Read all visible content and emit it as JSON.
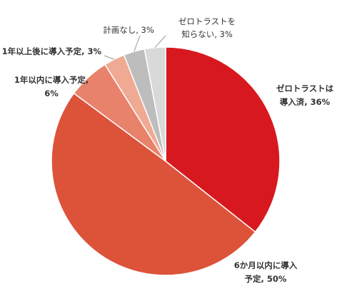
{
  "chart_data": {
    "type": "pie",
    "values": [
      36,
      50,
      6,
      3,
      3,
      3
    ],
    "value_labels": [
      [
        "ゼロトラストは",
        "導入済, 36%"
      ],
      [
        "6か月以内に導入",
        "予定, 50%"
      ],
      [
        "1年以内に導入予定,",
        "6%"
      ],
      [
        "1年以上後に導入予定, 3%"
      ],
      [
        "計画なし, 3%"
      ],
      [
        "ゼロトラストを",
        "知らない, 3%"
      ]
    ],
    "colors": [
      "#d7191f",
      "#dc533a",
      "#e8826b",
      "#f0aa93",
      "#bdbdbd",
      "#d9d9d9"
    ]
  }
}
